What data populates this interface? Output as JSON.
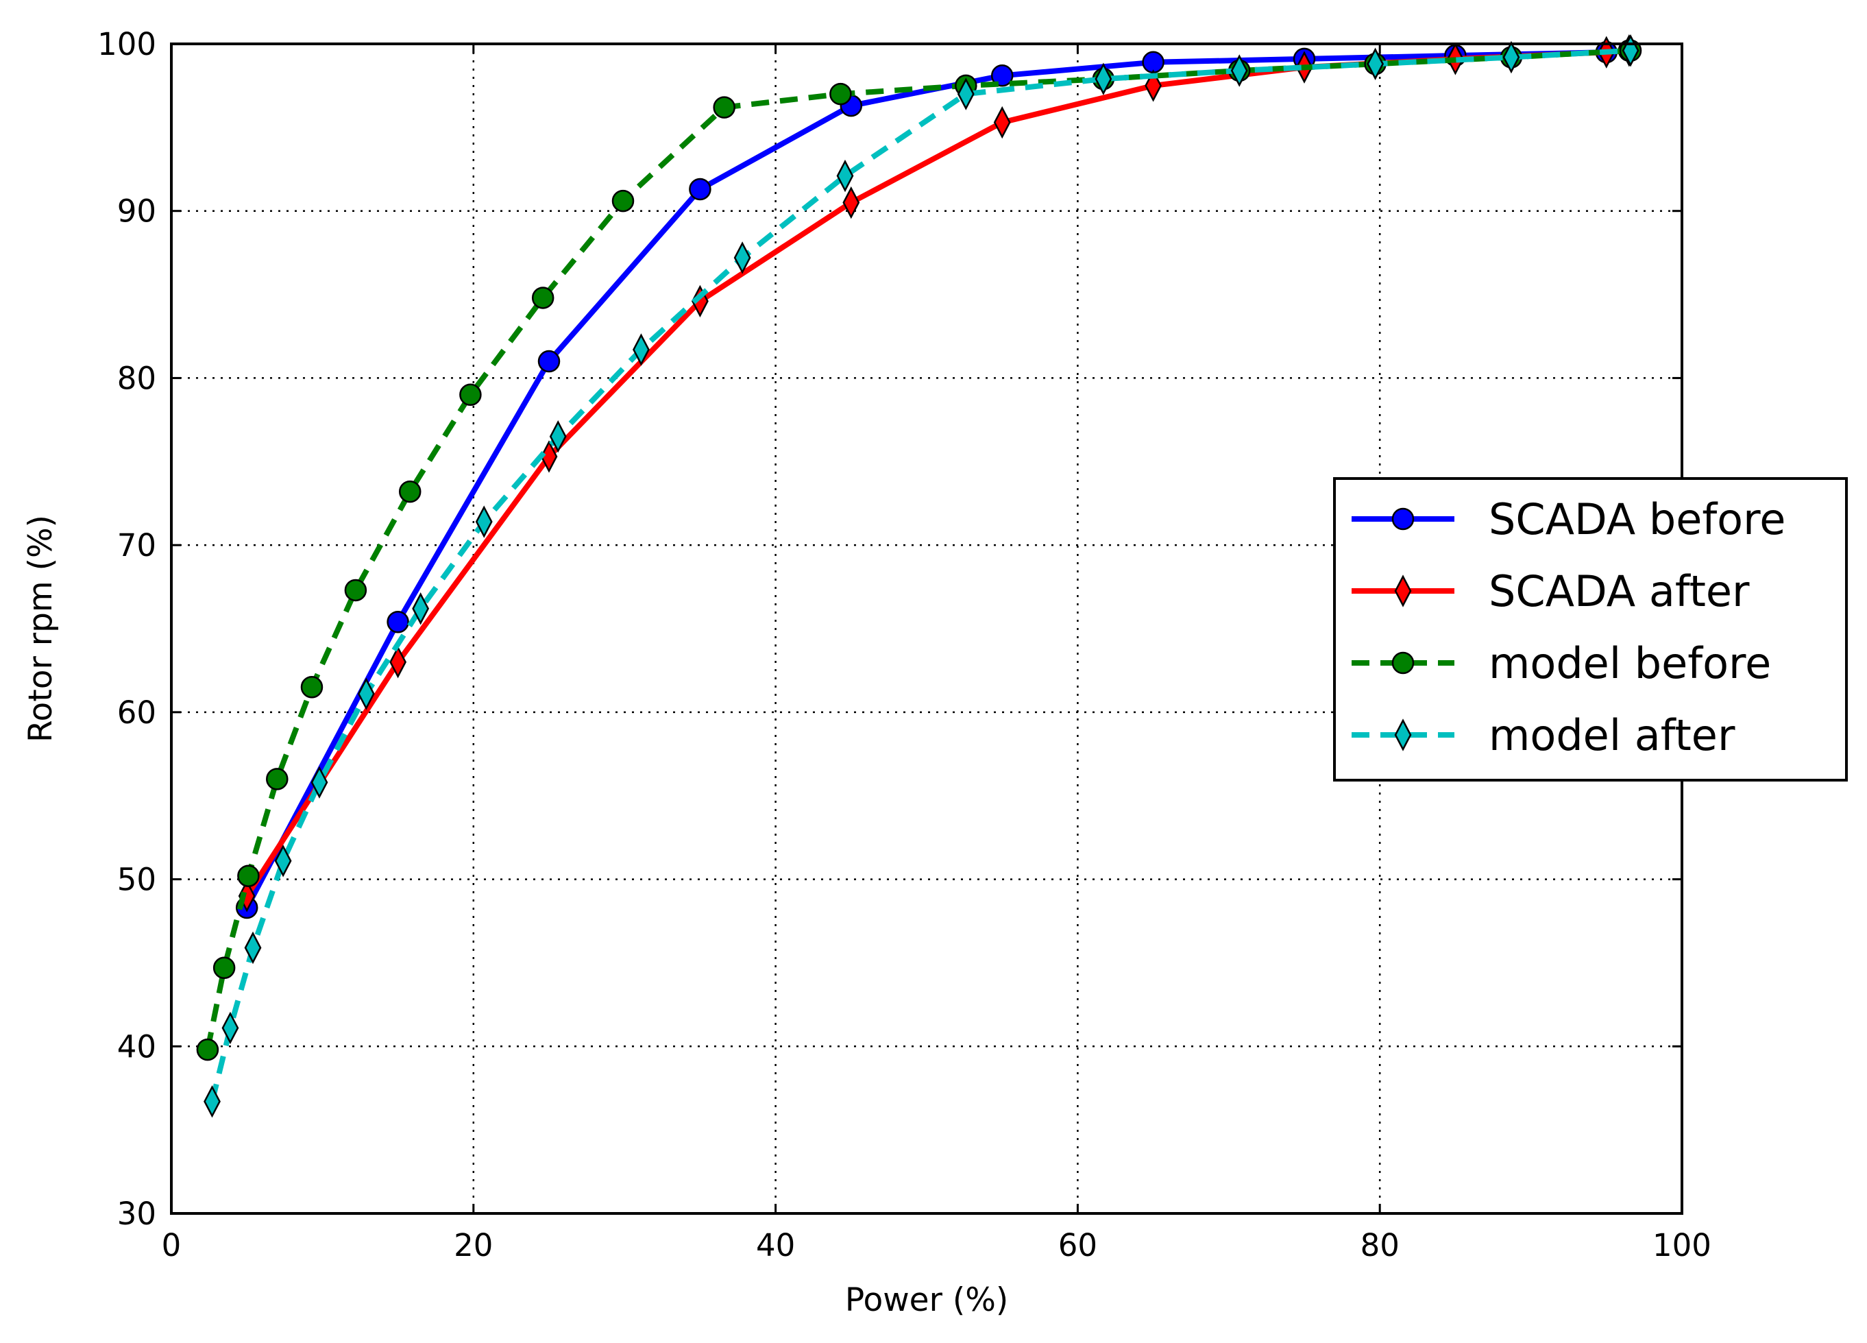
{
  "chart_data": {
    "type": "line",
    "title": "",
    "xlabel": "Power (%)",
    "ylabel": "Rotor rpm (%)",
    "xlim": [
      0,
      100
    ],
    "ylim": [
      30,
      100
    ],
    "xticks": [
      0,
      20,
      40,
      60,
      80,
      100
    ],
    "yticks": [
      30,
      40,
      50,
      60,
      70,
      80,
      90,
      100
    ],
    "grid": true,
    "legend_position": "center-right",
    "series": [
      {
        "name": "SCADA before",
        "color": "#0000ff",
        "line_style": "solid",
        "marker": "circle",
        "x": [
          5,
          15,
          25,
          35,
          45,
          55,
          65,
          75,
          85,
          95,
          96.5
        ],
        "y": [
          48.3,
          65.4,
          81.0,
          91.3,
          96.3,
          98.1,
          98.9,
          99.1,
          99.3,
          99.5,
          99.6
        ]
      },
      {
        "name": "SCADA after",
        "color": "#ff0000",
        "line_style": "solid",
        "marker": "thin-diamond",
        "x": [
          5,
          15,
          25,
          35,
          45,
          55,
          65,
          75,
          85,
          95,
          96.5
        ],
        "y": [
          49.0,
          63.0,
          75.3,
          84.6,
          90.5,
          95.3,
          97.5,
          98.6,
          99.1,
          99.5,
          99.6
        ]
      },
      {
        "name": "model before",
        "color": "#008000",
        "line_style": "dashed",
        "marker": "circle",
        "x": [
          2.4,
          3.5,
          5.1,
          7.0,
          9.3,
          12.2,
          15.8,
          19.8,
          24.6,
          29.9,
          36.6,
          44.3,
          52.6,
          61.7,
          70.7,
          79.7,
          88.7,
          96.6
        ],
        "y": [
          39.8,
          44.7,
          50.2,
          56.0,
          61.5,
          67.3,
          73.2,
          79.0,
          84.8,
          90.6,
          96.2,
          97.0,
          97.5,
          97.9,
          98.4,
          98.8,
          99.2,
          99.6
        ]
      },
      {
        "name": "model after",
        "color": "#00bfbf",
        "line_style": "dashed",
        "marker": "thin-diamond",
        "x": [
          2.7,
          3.9,
          5.4,
          7.4,
          9.8,
          12.9,
          16.5,
          20.7,
          25.6,
          31.1,
          37.8,
          44.6,
          52.6,
          61.7,
          70.7,
          79.7,
          88.7,
          96.6
        ],
        "y": [
          36.7,
          41.1,
          45.9,
          51.1,
          55.8,
          61.1,
          66.2,
          71.4,
          76.5,
          81.7,
          87.2,
          92.1,
          97.0,
          97.9,
          98.4,
          98.8,
          99.2,
          99.6
        ]
      }
    ]
  }
}
